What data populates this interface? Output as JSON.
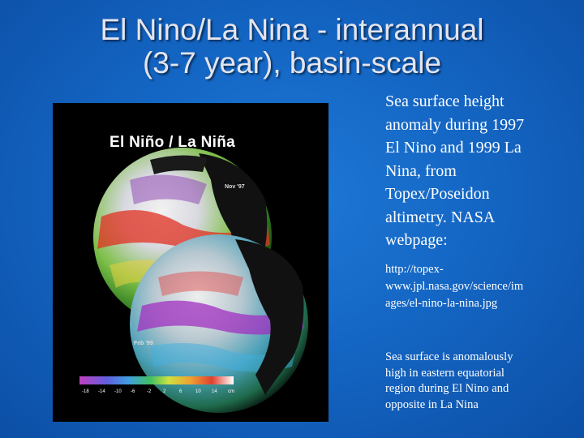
{
  "slide": {
    "title_lines": [
      "El Nino/La Nina - interannual",
      "(3-7 year), basin-scale"
    ],
    "caption_main_lines": [
      "Sea surface height",
      "anomaly during 1997",
      "El Nino and 1999 La",
      "Nina, from",
      "Topex/Poseidon",
      "altimetry.  NASA",
      "webpage:"
    ],
    "caption_url_lines": [
      "http://topex-",
      "www.jpl.nasa.gov/science/im",
      "ages/el-nino-la-nina.jpg"
    ],
    "caption_note_lines": [
      "Sea surface is anomalously",
      "high in eastern equatorial",
      "region during El Nino and",
      "opposite in La Nina"
    ]
  },
  "figure": {
    "heading": "El Niño / La Niña",
    "date_top": "Nov '97",
    "date_bottom": "Feb '99",
    "scale_ticks": [
      "-18",
      "-14",
      "-10",
      "-6",
      "-2",
      "2",
      "6",
      "10",
      "14",
      "cm"
    ]
  },
  "colors": {
    "background": "#1466c4",
    "title": "#e4e4ee",
    "caption": "#ffffff"
  }
}
